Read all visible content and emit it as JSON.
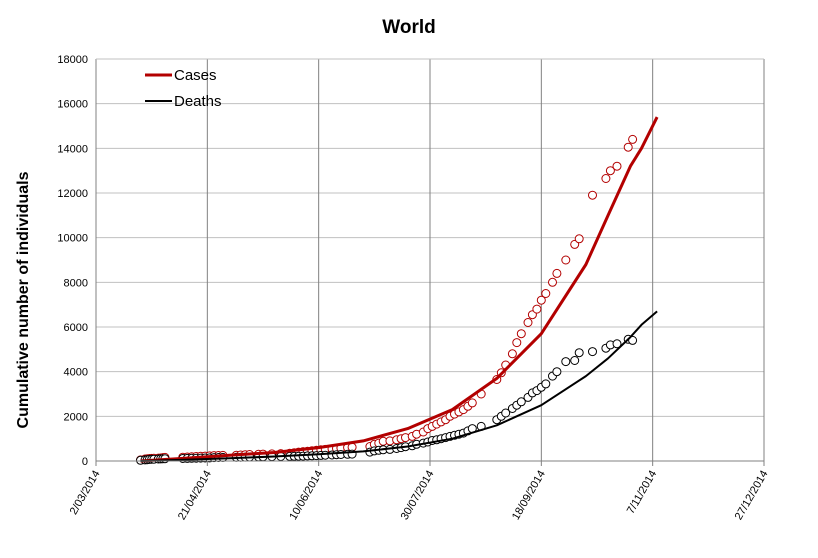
{
  "chart_data": {
    "type": "scatter",
    "title": "World",
    "xlabel": "",
    "ylabel": "Cumulative number of individuals",
    "ylim": [
      0,
      18000
    ],
    "yticks": [
      "0",
      "2000",
      "4000",
      "6000",
      "8000",
      "10000",
      "12000",
      "14000",
      "16000",
      "18000"
    ],
    "xlim": [
      "2014-03-02",
      "2014-12-27"
    ],
    "xticks": [
      {
        "date": "2014-03-02",
        "label": "2/03/2014"
      },
      {
        "date": "2014-04-21",
        "label": "21/04/2014"
      },
      {
        "date": "2014-06-10",
        "label": "10/06/2014"
      },
      {
        "date": "2014-07-30",
        "label": "30/07/2014"
      },
      {
        "date": "2014-09-18",
        "label": "18/09/2014"
      },
      {
        "date": "2014-11-07",
        "label": "7/11/2014"
      },
      {
        "date": "2014-12-27",
        "label": "27/12/2014"
      }
    ],
    "grid": {
      "vertical": true,
      "horizontal": true
    },
    "legend": {
      "position": "top-left",
      "entries": [
        {
          "name": "Cases",
          "color": "#b30000"
        },
        {
          "name": "Deaths",
          "color": "#000000"
        }
      ]
    },
    "series": [
      {
        "name": "Cases",
        "kind": "points",
        "color": "#b30000",
        "points": [
          [
            "2014-03-22",
            50
          ],
          [
            "2014-03-24",
            90
          ],
          [
            "2014-03-25",
            100
          ],
          [
            "2014-03-26",
            110
          ],
          [
            "2014-03-27",
            115
          ],
          [
            "2014-03-28",
            120
          ],
          [
            "2014-03-30",
            130
          ],
          [
            "2014-03-31",
            135
          ],
          [
            "2014-04-01",
            150
          ],
          [
            "2014-04-02",
            160
          ],
          [
            "2014-04-10",
            170
          ],
          [
            "2014-04-12",
            180
          ],
          [
            "2014-04-14",
            190
          ],
          [
            "2014-04-16",
            200
          ],
          [
            "2014-04-18",
            210
          ],
          [
            "2014-04-20",
            220
          ],
          [
            "2014-04-22",
            230
          ],
          [
            "2014-04-24",
            240
          ],
          [
            "2014-04-26",
            245
          ],
          [
            "2014-04-28",
            250
          ],
          [
            "2014-05-04",
            260
          ],
          [
            "2014-05-06",
            270
          ],
          [
            "2014-05-08",
            280
          ],
          [
            "2014-05-10",
            290
          ],
          [
            "2014-05-14",
            300
          ],
          [
            "2014-05-16",
            310
          ],
          [
            "2014-05-20",
            320
          ],
          [
            "2014-05-24",
            330
          ],
          [
            "2014-05-28",
            350
          ],
          [
            "2014-05-30",
            370
          ],
          [
            "2014-06-01",
            400
          ],
          [
            "2014-06-03",
            420
          ],
          [
            "2014-06-05",
            440
          ],
          [
            "2014-06-07",
            460
          ],
          [
            "2014-06-09",
            480
          ],
          [
            "2014-06-11",
            500
          ],
          [
            "2014-06-13",
            520
          ],
          [
            "2014-06-16",
            540
          ],
          [
            "2014-06-18",
            560
          ],
          [
            "2014-06-20",
            580
          ],
          [
            "2014-06-23",
            600
          ],
          [
            "2014-06-25",
            620
          ],
          [
            "2014-07-03",
            650
          ],
          [
            "2014-07-05",
            750
          ],
          [
            "2014-07-07",
            800
          ],
          [
            "2014-07-09",
            880
          ],
          [
            "2014-07-12",
            900
          ],
          [
            "2014-07-15",
            950
          ],
          [
            "2014-07-17",
            1000
          ],
          [
            "2014-07-19",
            1050
          ],
          [
            "2014-07-22",
            1100
          ],
          [
            "2014-07-24",
            1200
          ],
          [
            "2014-07-27",
            1300
          ],
          [
            "2014-07-29",
            1450
          ],
          [
            "2014-07-31",
            1550
          ],
          [
            "2014-08-02",
            1650
          ],
          [
            "2014-08-04",
            1750
          ],
          [
            "2014-08-06",
            1850
          ],
          [
            "2014-08-08",
            2000
          ],
          [
            "2014-08-10",
            2100
          ],
          [
            "2014-08-12",
            2200
          ],
          [
            "2014-08-14",
            2300
          ],
          [
            "2014-08-16",
            2450
          ],
          [
            "2014-08-18",
            2600
          ],
          [
            "2014-08-22",
            3000
          ],
          [
            "2014-08-29",
            3650
          ],
          [
            "2014-08-31",
            3950
          ],
          [
            "2014-09-02",
            4300
          ],
          [
            "2014-09-05",
            4800
          ],
          [
            "2014-09-07",
            5300
          ],
          [
            "2014-09-09",
            5700
          ],
          [
            "2014-09-12",
            6200
          ],
          [
            "2014-09-14",
            6550
          ],
          [
            "2014-09-16",
            6800
          ],
          [
            "2014-09-18",
            7200
          ],
          [
            "2014-09-20",
            7500
          ],
          [
            "2014-09-23",
            8000
          ],
          [
            "2014-09-25",
            8400
          ],
          [
            "2014-09-29",
            9000
          ],
          [
            "2014-10-03",
            9700
          ],
          [
            "2014-10-05",
            9950
          ],
          [
            "2014-10-11",
            11900
          ],
          [
            "2014-10-17",
            12650
          ],
          [
            "2014-10-19",
            13000
          ],
          [
            "2014-10-22",
            13200
          ],
          [
            "2014-10-27",
            14050
          ],
          [
            "2014-10-29",
            14400
          ]
        ]
      },
      {
        "name": "Deaths",
        "kind": "points",
        "color": "#000000",
        "points": [
          [
            "2014-03-22",
            30
          ],
          [
            "2014-03-24",
            50
          ],
          [
            "2014-03-25",
            60
          ],
          [
            "2014-03-26",
            70
          ],
          [
            "2014-03-27",
            75
          ],
          [
            "2014-03-28",
            80
          ],
          [
            "2014-03-30",
            90
          ],
          [
            "2014-03-31",
            95
          ],
          [
            "2014-04-01",
            100
          ],
          [
            "2014-04-02",
            105
          ],
          [
            "2014-04-10",
            110
          ],
          [
            "2014-04-12",
            115
          ],
          [
            "2014-04-14",
            120
          ],
          [
            "2014-04-16",
            125
          ],
          [
            "2014-04-18",
            130
          ],
          [
            "2014-04-20",
            135
          ],
          [
            "2014-04-22",
            140
          ],
          [
            "2014-04-24",
            150
          ],
          [
            "2014-04-26",
            155
          ],
          [
            "2014-04-28",
            160
          ],
          [
            "2014-05-04",
            165
          ],
          [
            "2014-05-06",
            170
          ],
          [
            "2014-05-08",
            175
          ],
          [
            "2014-05-10",
            180
          ],
          [
            "2014-05-14",
            185
          ],
          [
            "2014-05-16",
            190
          ],
          [
            "2014-05-20",
            195
          ],
          [
            "2014-05-24",
            200
          ],
          [
            "2014-05-28",
            205
          ],
          [
            "2014-05-30",
            210
          ],
          [
            "2014-06-01",
            215
          ],
          [
            "2014-06-03",
            220
          ],
          [
            "2014-06-05",
            230
          ],
          [
            "2014-06-07",
            235
          ],
          [
            "2014-06-09",
            240
          ],
          [
            "2014-06-11",
            250
          ],
          [
            "2014-06-13",
            260
          ],
          [
            "2014-06-16",
            270
          ],
          [
            "2014-06-18",
            280
          ],
          [
            "2014-06-20",
            290
          ],
          [
            "2014-06-23",
            300
          ],
          [
            "2014-06-25",
            310
          ],
          [
            "2014-07-03",
            400
          ],
          [
            "2014-07-05",
            450
          ],
          [
            "2014-07-07",
            480
          ],
          [
            "2014-07-09",
            500
          ],
          [
            "2014-07-12",
            520
          ],
          [
            "2014-07-15",
            560
          ],
          [
            "2014-07-17",
            600
          ],
          [
            "2014-07-19",
            640
          ],
          [
            "2014-07-22",
            680
          ],
          [
            "2014-07-24",
            750
          ],
          [
            "2014-07-27",
            800
          ],
          [
            "2014-07-29",
            850
          ],
          [
            "2014-07-31",
            920
          ],
          [
            "2014-08-02",
            950
          ],
          [
            "2014-08-04",
            1000
          ],
          [
            "2014-08-06",
            1050
          ],
          [
            "2014-08-08",
            1100
          ],
          [
            "2014-08-10",
            1150
          ],
          [
            "2014-08-12",
            1200
          ],
          [
            "2014-08-14",
            1250
          ],
          [
            "2014-08-16",
            1350
          ],
          [
            "2014-08-18",
            1450
          ],
          [
            "2014-08-22",
            1550
          ],
          [
            "2014-08-29",
            1850
          ],
          [
            "2014-08-31",
            2000
          ],
          [
            "2014-09-02",
            2150
          ],
          [
            "2014-09-05",
            2350
          ],
          [
            "2014-09-07",
            2500
          ],
          [
            "2014-09-09",
            2650
          ],
          [
            "2014-09-12",
            2850
          ],
          [
            "2014-09-14",
            3050
          ],
          [
            "2014-09-16",
            3150
          ],
          [
            "2014-09-18",
            3300
          ],
          [
            "2014-09-20",
            3450
          ],
          [
            "2014-09-23",
            3800
          ],
          [
            "2014-09-25",
            4000
          ],
          [
            "2014-09-29",
            4450
          ],
          [
            "2014-10-03",
            4500
          ],
          [
            "2014-10-05",
            4850
          ],
          [
            "2014-10-11",
            4900
          ],
          [
            "2014-10-17",
            5050
          ],
          [
            "2014-10-19",
            5200
          ],
          [
            "2014-10-22",
            5250
          ],
          [
            "2014-10-27",
            5450
          ],
          [
            "2014-10-29",
            5400
          ]
        ]
      },
      {
        "name": "Cases",
        "kind": "line",
        "color": "#b30000",
        "points": [
          [
            "2014-03-22",
            0
          ],
          [
            "2014-04-11",
            120
          ],
          [
            "2014-05-01",
            260
          ],
          [
            "2014-05-21",
            380
          ],
          [
            "2014-06-10",
            600
          ],
          [
            "2014-06-30",
            900
          ],
          [
            "2014-07-20",
            1450
          ],
          [
            "2014-08-09",
            2300
          ],
          [
            "2014-08-29",
            3700
          ],
          [
            "2014-09-18",
            5700
          ],
          [
            "2014-10-08",
            8800
          ],
          [
            "2014-10-18",
            11000
          ],
          [
            "2014-10-28",
            13200
          ],
          [
            "2014-11-02",
            14000
          ],
          [
            "2014-11-09",
            15400
          ]
        ]
      },
      {
        "name": "Deaths",
        "kind": "line",
        "color": "#000000",
        "points": [
          [
            "2014-03-22",
            0
          ],
          [
            "2014-04-11",
            60
          ],
          [
            "2014-05-01",
            120
          ],
          [
            "2014-05-21",
            200
          ],
          [
            "2014-06-10",
            300
          ],
          [
            "2014-06-30",
            430
          ],
          [
            "2014-07-20",
            650
          ],
          [
            "2014-08-09",
            1000
          ],
          [
            "2014-08-29",
            1600
          ],
          [
            "2014-09-18",
            2500
          ],
          [
            "2014-10-08",
            3800
          ],
          [
            "2014-10-18",
            4600
          ],
          [
            "2014-10-28",
            5550
          ],
          [
            "2014-11-02",
            6100
          ],
          [
            "2014-11-09",
            6700
          ]
        ]
      }
    ]
  }
}
